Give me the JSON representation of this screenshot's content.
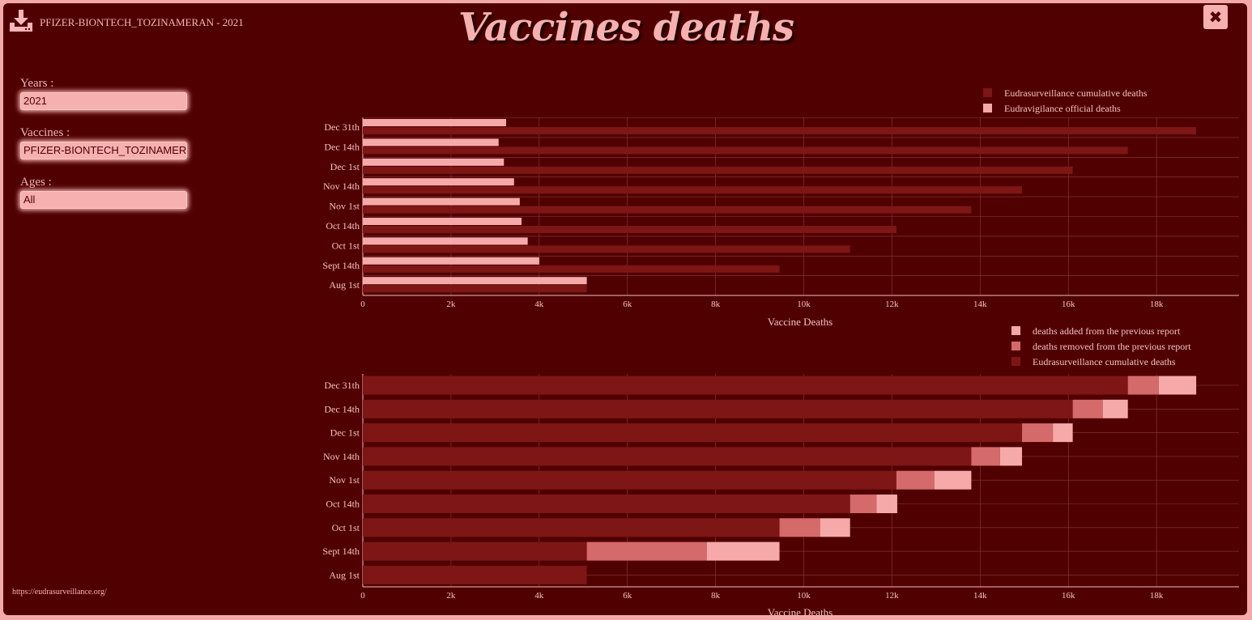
{
  "header": {
    "download_icon": "download-icon",
    "subtitle": "PFIZER-BIONTECH_TOZINAMERAN - 2021",
    "title": "Vaccines deaths",
    "close_icon": "close-icon",
    "close_label": "✖"
  },
  "controls": {
    "years_label": "Years :",
    "years_value": "2021",
    "vaccines_label": "Vaccines :",
    "vaccines_value": "PFIZER-BIONTECH_TOZINAMERAN",
    "ages_label": "Ages :",
    "ages_value": "All"
  },
  "footer": {
    "source": "https://eudrasurveillance.org/"
  },
  "colors": {
    "background": "#500000",
    "cumulative": "#7e1616",
    "official": "#f6a9a9",
    "added": "#f6a9a9",
    "removed": "#d46a6a"
  },
  "chart_data": [
    {
      "type": "bar",
      "orientation": "horizontal",
      "categories": [
        "Dec 31th",
        "Dec 14th",
        "Dec 1st",
        "Nov 14th",
        "Nov 1st",
        "Oct 14th",
        "Oct 1st",
        "Sept 14th",
        "Aug 1st"
      ],
      "series": [
        {
          "name": "Eudrasurveillance cumulative deaths",
          "values": [
            18900,
            17350,
            16100,
            14950,
            13800,
            12100,
            11050,
            9450,
            5080
          ]
        },
        {
          "name": "Eudravigilance official deaths",
          "values": [
            3250,
            3080,
            3200,
            3430,
            3560,
            3600,
            3740,
            4000,
            5080
          ]
        }
      ],
      "xlabel": "Vaccine Deaths",
      "xticks": [
        "0",
        "2k",
        "4k",
        "6k",
        "8k",
        "10k",
        "12k",
        "14k",
        "16k",
        "18k"
      ],
      "xlim": [
        0,
        19900
      ],
      "legend": "top-right"
    },
    {
      "type": "bar",
      "orientation": "horizontal",
      "stacked": true,
      "categories": [
        "Dec 31th",
        "Dec 14th",
        "Dec 1st",
        "Nov 14th",
        "Nov 1st",
        "Oct 14th",
        "Oct 1st",
        "Sept 14th",
        "Aug 1st"
      ],
      "series": [
        {
          "name": "Eudrasurveillance cumulative deaths",
          "values": [
            17350,
            16100,
            14950,
            13800,
            12100,
            11050,
            9450,
            5080,
            5080
          ]
        },
        {
          "name": "deaths removed from the previous report",
          "values": [
            700,
            680,
            700,
            650,
            860,
            600,
            920,
            2720,
            0
          ]
        },
        {
          "name": "deaths added from the previous report",
          "values": [
            850,
            570,
            450,
            500,
            840,
            470,
            680,
            1650,
            0
          ]
        }
      ],
      "xlabel": "Vaccine Deaths",
      "xticks": [
        "0",
        "2k",
        "4k",
        "6k",
        "8k",
        "10k",
        "12k",
        "14k",
        "16k",
        "18k"
      ],
      "xlim": [
        0,
        19900
      ],
      "legend": "top-right"
    }
  ]
}
